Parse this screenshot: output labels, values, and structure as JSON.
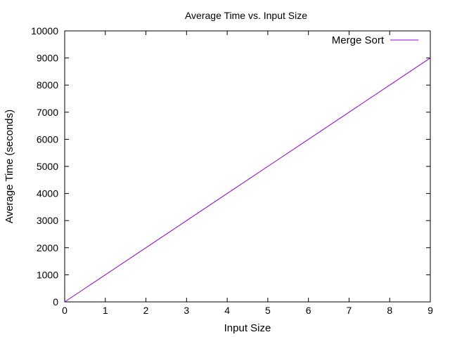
{
  "chart_data": {
    "type": "line",
    "title": "Average Time vs. Input Size",
    "xlabel": "Input Size",
    "ylabel": "Average Time (seconds)",
    "xlim": [
      0,
      9
    ],
    "ylim": [
      0,
      10000
    ],
    "x_ticks": [
      "0",
      "1",
      "2",
      "3",
      "4",
      "5",
      "6",
      "7",
      "8",
      "9"
    ],
    "y_ticks": [
      "0",
      "1000",
      "2000",
      "3000",
      "4000",
      "5000",
      "6000",
      "7000",
      "8000",
      "9000",
      "10000"
    ],
    "grid": false,
    "legend_position": "top-right",
    "series": [
      {
        "name": "Merge Sort",
        "color": "#9400d3",
        "x": [
          0,
          1,
          2,
          3,
          4,
          5,
          6,
          7,
          8,
          9
        ],
        "y": [
          0,
          1000,
          2000,
          3000,
          4000,
          5000,
          6000,
          7000,
          8000,
          9000
        ]
      }
    ]
  }
}
